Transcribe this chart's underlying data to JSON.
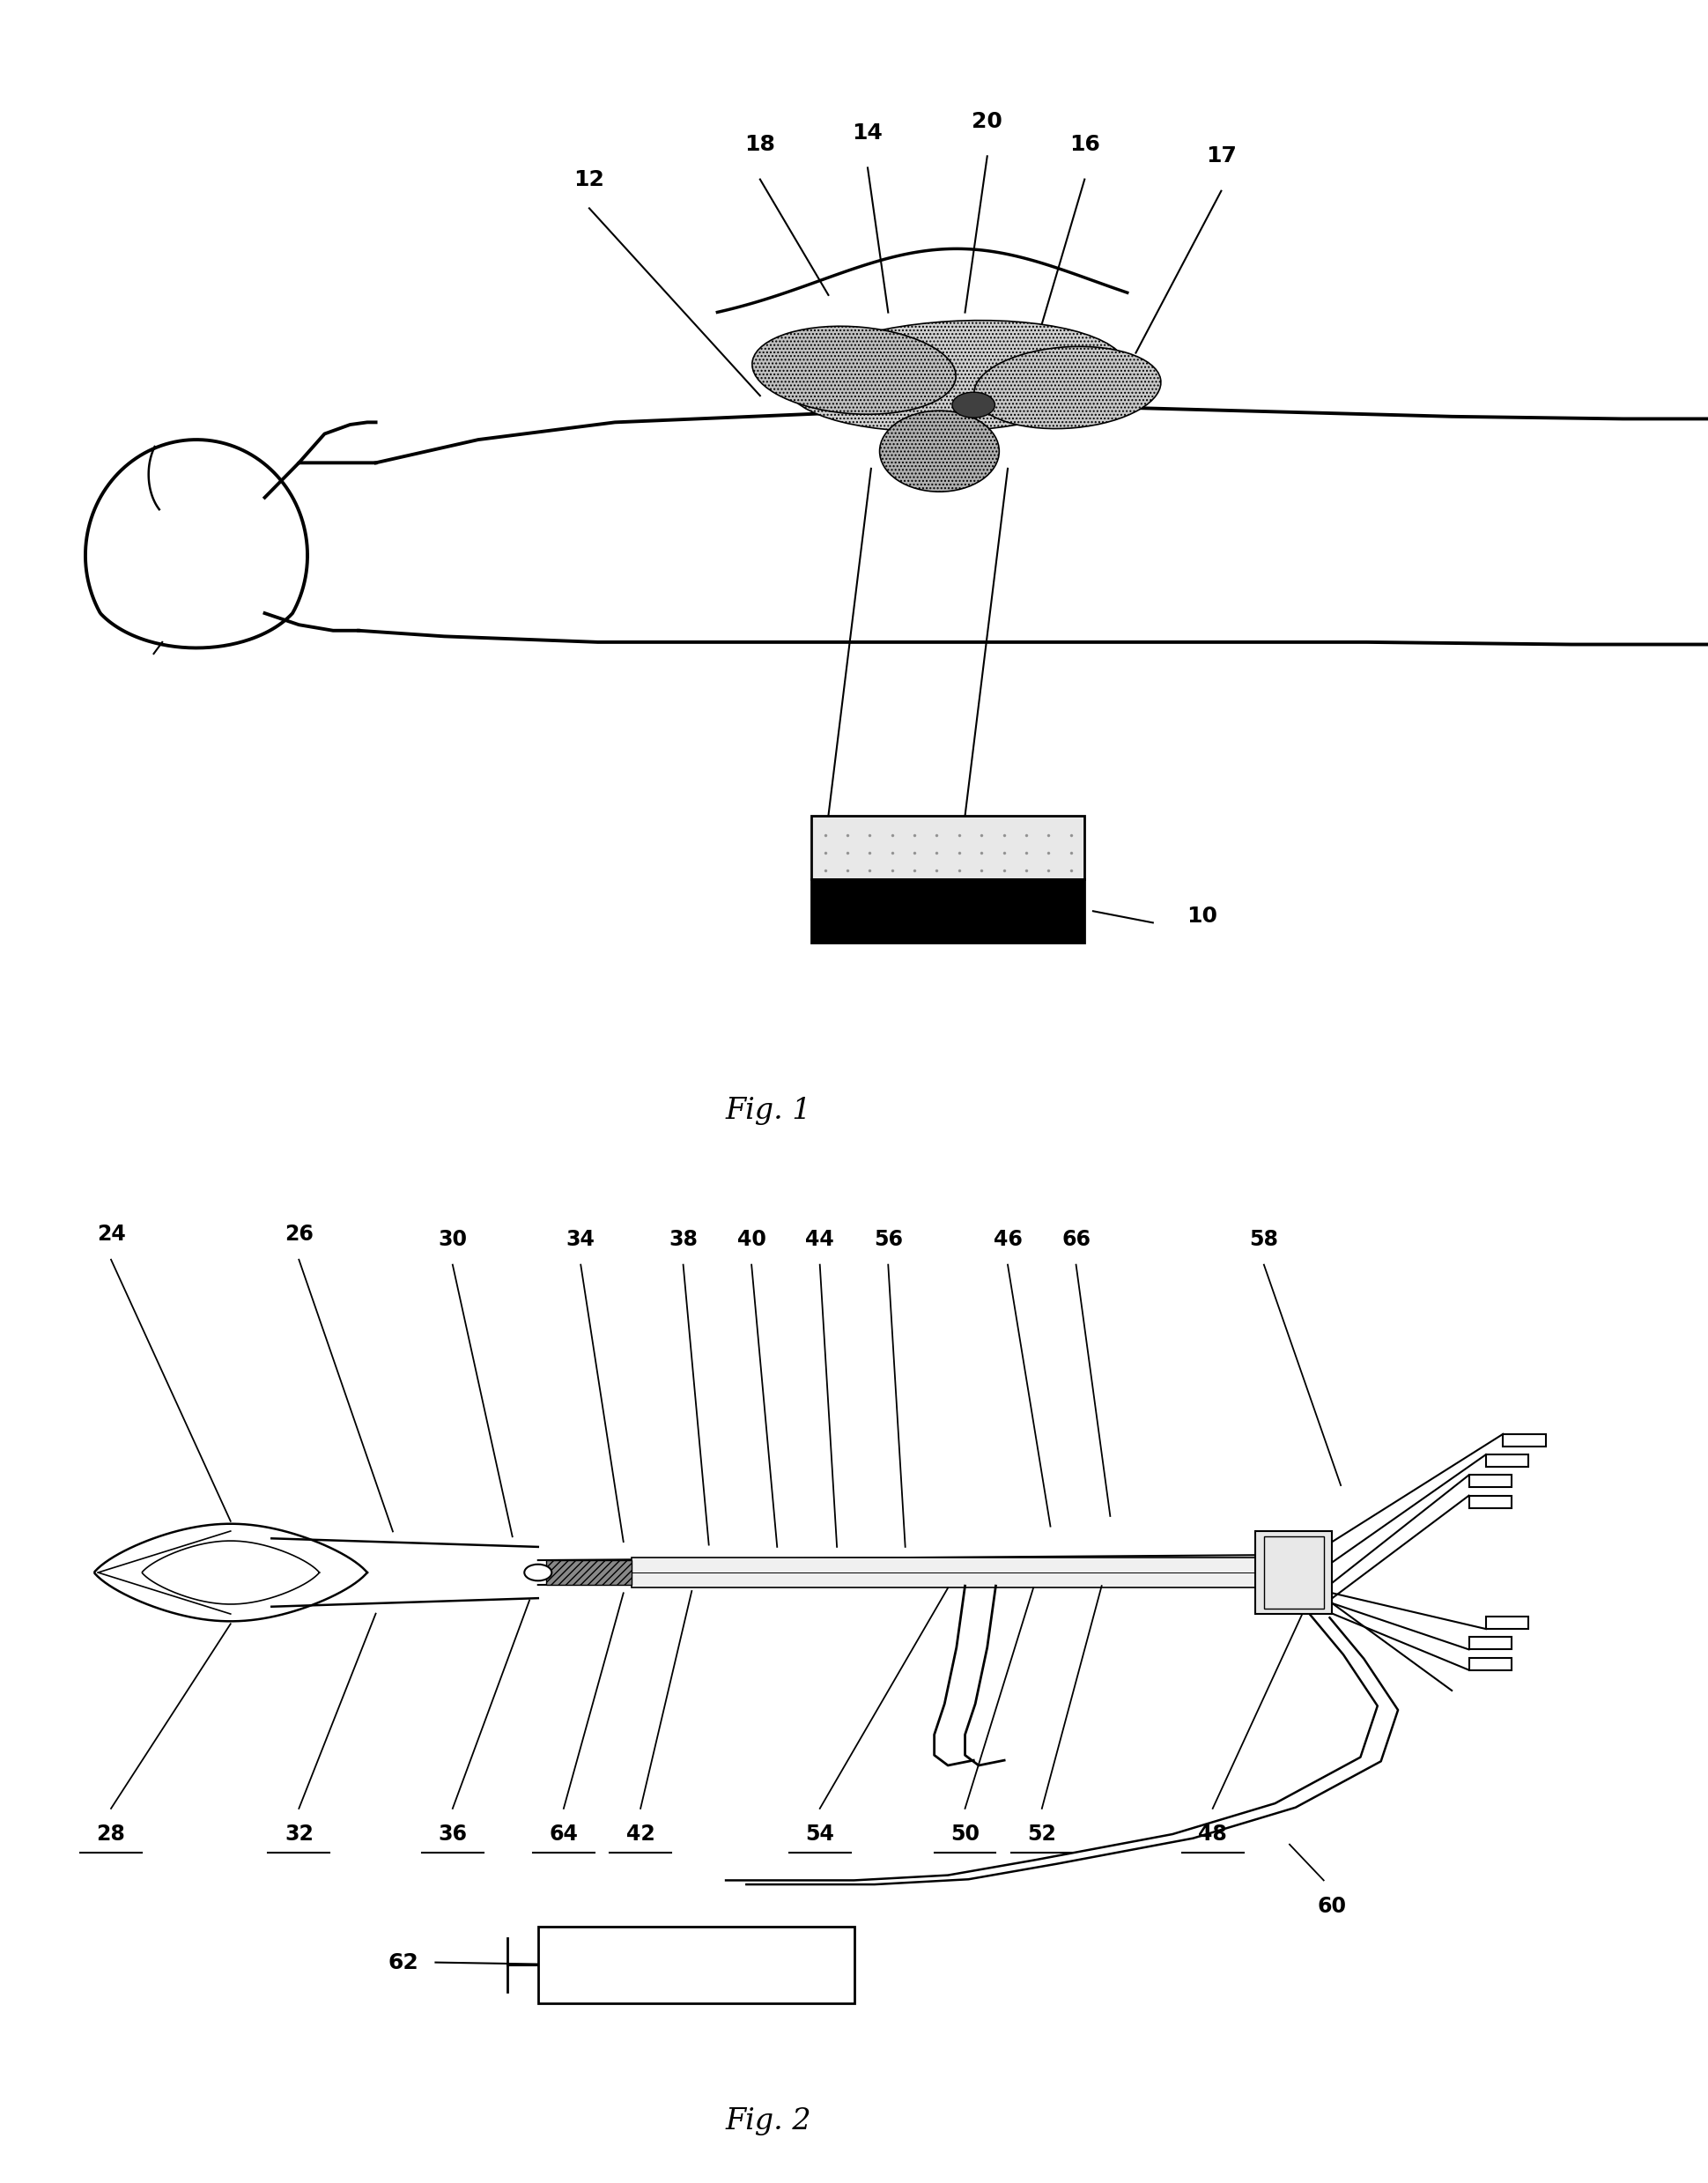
{
  "fig1_caption": "Fig. 1",
  "fig2_caption": "Fig. 2",
  "background_color": "#ffffff",
  "line_color": "#000000",
  "font_size_labels": 16,
  "font_size_caption": 22
}
